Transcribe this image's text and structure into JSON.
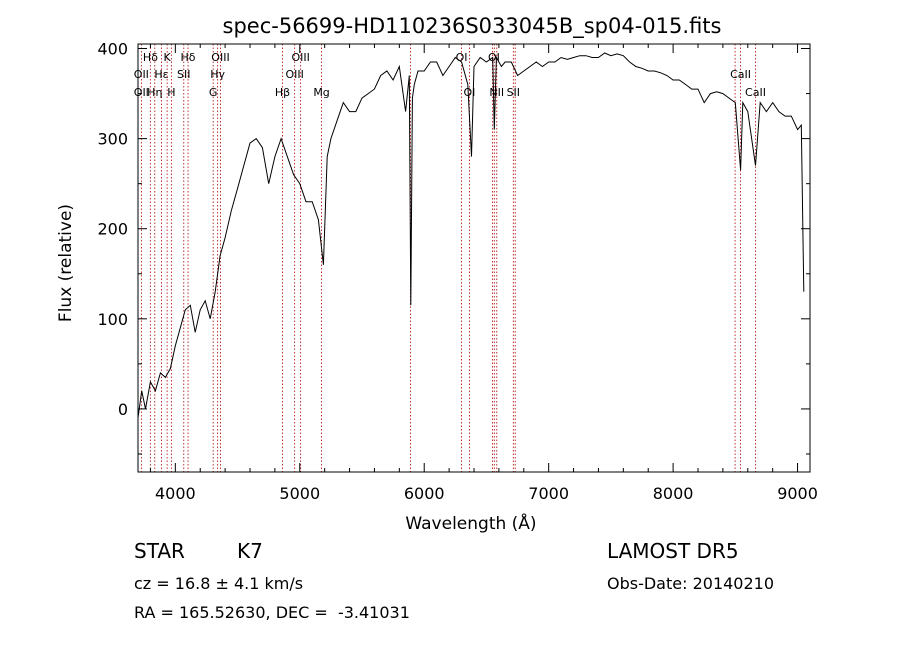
{
  "chart_data": {
    "type": "line",
    "title": "spec-56699-HD110236S033045B_sp04-015.fits",
    "xlabel": "Wavelength (Å)",
    "ylabel": "Flux (relative)",
    "xlim": [
      3700,
      9100
    ],
    "ylim": [
      -70,
      405
    ],
    "xticks": [
      4000,
      5000,
      6000,
      7000,
      8000,
      9000
    ],
    "yticks": [
      0,
      100,
      200,
      300,
      400
    ],
    "grid": false,
    "series": [
      {
        "x": [
          3700,
          3730,
          3760,
          3800,
          3840,
          3880,
          3920,
          3960,
          4000,
          4040,
          4080,
          4120,
          4160,
          4200,
          4240,
          4280,
          4320,
          4360,
          4400,
          4450,
          4500,
          4550,
          4600,
          4650,
          4700,
          4750,
          4800,
          4850,
          4900,
          4950,
          5000,
          5050,
          5100,
          5150,
          5190,
          5220,
          5250,
          5300,
          5350,
          5400,
          5450,
          5500,
          5550,
          5600,
          5650,
          5700,
          5750,
          5800,
          5850,
          5880,
          5892,
          5905,
          5920,
          5950,
          6000,
          6050,
          6100,
          6150,
          6200,
          6250,
          6300,
          6350,
          6380,
          6400,
          6450,
          6500,
          6550,
          6563,
          6580,
          6620,
          6650,
          6700,
          6750,
          6800,
          6850,
          6900,
          6950,
          7000,
          7050,
          7100,
          7150,
          7200,
          7250,
          7300,
          7350,
          7400,
          7450,
          7500,
          7550,
          7600,
          7650,
          7700,
          7750,
          7800,
          7850,
          7900,
          7950,
          8000,
          8050,
          8100,
          8150,
          8200,
          8250,
          8300,
          8350,
          8400,
          8450,
          8500,
          8542,
          8560,
          8600,
          8662,
          8700,
          8750,
          8800,
          8850,
          8900,
          8950,
          9000,
          9030,
          9050
        ],
        "values": [
          -10,
          20,
          0,
          30,
          20,
          40,
          35,
          45,
          70,
          90,
          110,
          115,
          85,
          110,
          120,
          100,
          130,
          170,
          190,
          220,
          245,
          270,
          295,
          300,
          290,
          250,
          280,
          300,
          280,
          260,
          250,
          230,
          230,
          210,
          160,
          280,
          300,
          320,
          340,
          330,
          330,
          345,
          350,
          355,
          370,
          375,
          365,
          380,
          330,
          370,
          115,
          345,
          360,
          375,
          375,
          385,
          385,
          370,
          380,
          390,
          385,
          360,
          280,
          380,
          390,
          385,
          390,
          310,
          390,
          380,
          385,
          385,
          370,
          375,
          380,
          385,
          380,
          385,
          385,
          390,
          388,
          390,
          392,
          392,
          390,
          390,
          395,
          392,
          394,
          392,
          385,
          380,
          378,
          375,
          375,
          373,
          370,
          365,
          365,
          360,
          355,
          355,
          340,
          350,
          352,
          350,
          345,
          340,
          265,
          340,
          330,
          270,
          340,
          330,
          340,
          330,
          325,
          325,
          310,
          315,
          130
        ]
      }
    ],
    "line_labels": [
      {
        "text": "Hδ",
        "x": 3800,
        "row": 1
      },
      {
        "text": "K",
        "x": 3934,
        "row": 1
      },
      {
        "text": "Hδ",
        "x": 4102,
        "row": 1
      },
      {
        "text": "OIII",
        "x": 4363,
        "row": 1
      },
      {
        "text": "OIII",
        "x": 5007,
        "row": 1
      },
      {
        "text": "OI",
        "x": 6300,
        "row": 1
      },
      {
        "text": "OI",
        "x": 6560,
        "row": 1
      },
      {
        "text": "OII",
        "x": 3727,
        "row": 2
      },
      {
        "text": "Hε",
        "x": 3889,
        "row": 2
      },
      {
        "text": "SII",
        "x": 4068,
        "row": 2
      },
      {
        "text": "Hγ",
        "x": 4340,
        "row": 2
      },
      {
        "text": "OIII",
        "x": 4959,
        "row": 2
      },
      {
        "text": "CaII",
        "x": 8542,
        "row": 2
      },
      {
        "text": "OII",
        "x": 3727,
        "row": 3
      },
      {
        "text": "Hη",
        "x": 3835,
        "row": 3
      },
      {
        "text": "H",
        "x": 3968,
        "row": 3
      },
      {
        "text": "G",
        "x": 4304,
        "row": 3
      },
      {
        "text": "Hβ",
        "x": 4861,
        "row": 3
      },
      {
        "text": "Mg",
        "x": 5175,
        "row": 3
      },
      {
        "text": "NII",
        "x": 6583,
        "row": 3
      },
      {
        "text": "SII",
        "x": 6716,
        "row": 3
      },
      {
        "text": "OI",
        "x": 6363,
        "row": 3
      },
      {
        "text": "CaII",
        "x": 8662,
        "row": 3
      }
    ],
    "line_markers": [
      3727,
      3799,
      3835,
      3889,
      3934,
      3968,
      4068,
      4102,
      4304,
      4340,
      4363,
      4861,
      4959,
      5007,
      5175,
      5890,
      6300,
      6363,
      6548,
      6563,
      6583,
      6716,
      6731,
      8498,
      8542,
      8662
    ]
  },
  "info": {
    "class_label": "STAR",
    "subclass": "K7",
    "survey": "LAMOST DR5",
    "cz": "cz = 16.8 ± 4.1 km/s",
    "obs_date": "Obs-Date: 20140210",
    "coords": "RA = 165.52630, DEC =  -3.41031"
  }
}
